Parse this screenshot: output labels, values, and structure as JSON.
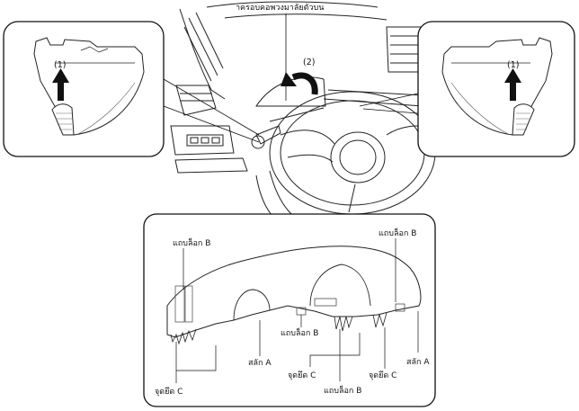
{
  "top_caption": "าครอบคอพวงมาลัยตัวบน",
  "step_labels": {
    "lift_left": "(1)",
    "rotate": "(2)",
    "lift_right": "(1)"
  },
  "callouts": {
    "tab_b_top_left": "แถบล็อก B",
    "tab_b_top_right": "แถบล็อก B",
    "tab_b_center": "แถบล็อก B",
    "tab_b_bottom": "แถบล็อก B",
    "clip_a_left": "สลัก A",
    "clip_a_right": "สลัก A",
    "point_c_left": "จุดยึด C",
    "point_c_center": "จุดยึด C",
    "point_c_right": "จุดยึด C"
  },
  "icons": [
    "arrow-up-icon",
    "rotate-arrow-icon"
  ]
}
